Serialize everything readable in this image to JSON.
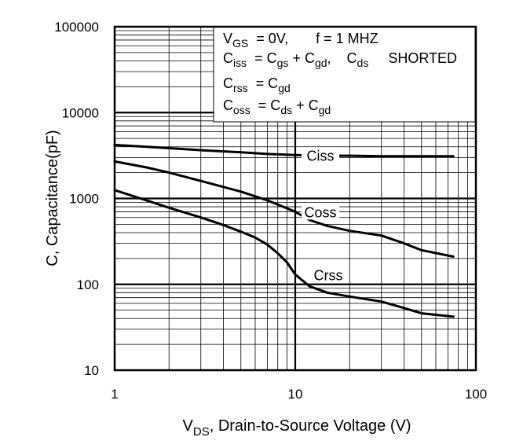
{
  "chart_data": {
    "type": "line",
    "xscale": "log",
    "yscale": "log",
    "xlim": [
      1,
      100
    ],
    "ylim": [
      10,
      100000
    ],
    "grid": true,
    "xlabel": {
      "main": "V",
      "sub": "DS",
      "rest": ", Drain-to-Source Voltage (V)"
    },
    "ylabel": "C, Capacitance(pF)",
    "x_ticks": [
      {
        "value": 1,
        "label": "1"
      },
      {
        "value": 10,
        "label": "10"
      },
      {
        "value": 100,
        "label": "100"
      }
    ],
    "y_ticks": [
      {
        "value": 10,
        "label": "10"
      },
      {
        "value": 100,
        "label": "100"
      },
      {
        "value": 1000,
        "label": "1000"
      },
      {
        "value": 10000,
        "label": "10000"
      },
      {
        "value": 100000,
        "label": "100000"
      }
    ],
    "series": [
      {
        "name": "Ciss",
        "x": [
          1,
          1.5,
          2,
          3,
          5,
          7,
          10,
          15,
          20,
          30,
          50,
          75
        ],
        "y": [
          4200,
          4000,
          3850,
          3650,
          3450,
          3300,
          3200,
          3150,
          3150,
          3100,
          3100,
          3100
        ]
      },
      {
        "name": "Coss",
        "x": [
          1,
          1.5,
          2,
          3,
          5,
          7,
          10,
          12,
          15,
          20,
          30,
          40,
          50,
          75
        ],
        "y": [
          2700,
          2300,
          2000,
          1600,
          1200,
          950,
          700,
          560,
          480,
          420,
          370,
          300,
          250,
          210
        ]
      },
      {
        "name": "Crss",
        "x": [
          1,
          1.5,
          2,
          3,
          4,
          5,
          6,
          7,
          8,
          9,
          10,
          12,
          15,
          20,
          30,
          40,
          50,
          75
        ],
        "y": [
          1250,
          950,
          780,
          600,
          490,
          410,
          350,
          290,
          230,
          180,
          130,
          95,
          80,
          72,
          63,
          53,
          46,
          42
        ]
      }
    ]
  },
  "legend": {
    "line1": {
      "c": "V",
      "sub": "GS",
      "rest": "  = 0V,       f = 1 MHZ"
    },
    "line2": {
      "c": "C",
      "sub": "iss",
      "eq": "  = C",
      "sub2": "gs",
      "plus": " + C",
      "sub3": "gd",
      "tail": ",    C",
      "sub4": "ds",
      "end": "     SHORTED"
    },
    "line3": {
      "c": "C",
      "sub": "rss",
      "eq": "  = C",
      "sub2": "gd"
    },
    "line4": {
      "c": "C",
      "sub": "oss",
      "eq": "  = C",
      "sub2": "ds",
      "plus": " + C",
      "sub3": "gd"
    }
  }
}
